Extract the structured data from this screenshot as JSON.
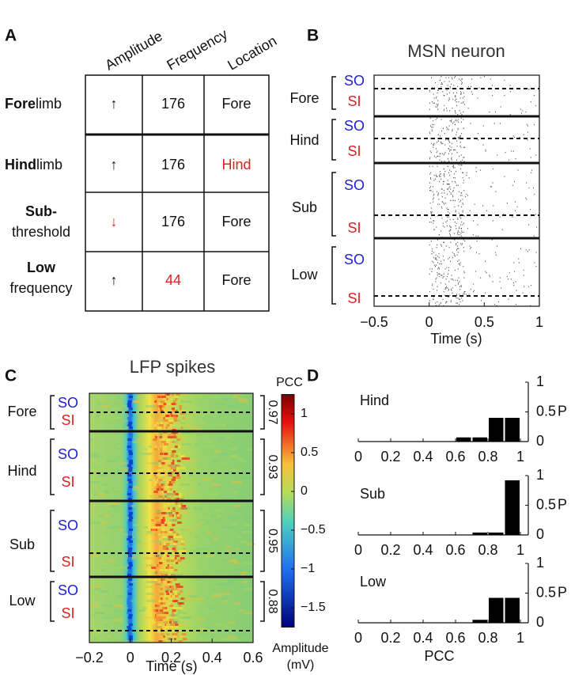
{
  "panels": {
    "a": {
      "label": "A",
      "columns": [
        "Amplitude",
        "Frequency",
        "Location"
      ],
      "rows": [
        {
          "label_bold": "Fore",
          "label_rest": "limb",
          "amplitude": "↑",
          "frequency": 176,
          "location": "Fore"
        },
        {
          "label_bold": "Hind",
          "label_rest": "limb",
          "amplitude": "↑",
          "frequency": 176,
          "location": "Hind"
        },
        {
          "label_bold": "Sub-",
          "label_rest": "threshold",
          "amplitude": "↓",
          "frequency": 176,
          "location": "Fore"
        },
        {
          "label_bold": "Low",
          "label_rest": "frequency",
          "amplitude": "↑",
          "frequency": 44,
          "location": "Fore"
        }
      ]
    },
    "b": {
      "label": "B",
      "title": "MSN neuron",
      "xlabel": "Time (s)",
      "xlim": [
        -0.5,
        1
      ],
      "xticks": [
        {
          "value": -0.5,
          "label": "−0.5"
        },
        0,
        0.5,
        1
      ],
      "groups": [
        {
          "name": "Fore",
          "top": "SO",
          "bottom": "SI"
        },
        {
          "name": "Hind",
          "top": "SO",
          "bottom": "SI"
        },
        {
          "name": "Sub",
          "top": "SO",
          "bottom": "SI"
        },
        {
          "name": "Low",
          "top": "SO",
          "bottom": "SI"
        }
      ]
    },
    "c": {
      "label": "C",
      "title": "LFP spikes",
      "xlabel": "Time (s)",
      "xlim": [
        -0.2,
        0.6
      ],
      "xticks": [
        {
          "value": -0.2,
          "label": "−0.2"
        },
        0,
        0.2,
        0.4,
        0.6
      ],
      "colorbar_title": "PCC",
      "colorbar_label_1": "Amplitude",
      "colorbar_label_2": "(mV)",
      "clim": [
        -1.75,
        1.25
      ],
      "cticks": [
        1,
        0.5,
        0,
        {
          "value": -0.5,
          "label": "−0.5"
        },
        {
          "value": -1,
          "label": "−1"
        },
        {
          "value": -1.5,
          "label": "−1.5"
        }
      ],
      "groups": [
        {
          "name": "Fore",
          "top": "SO",
          "bottom": "SI",
          "pcc": 0.97
        },
        {
          "name": "Hind",
          "top": "SO",
          "bottom": "SI",
          "pcc": 0.93
        },
        {
          "name": "Sub",
          "top": "SO",
          "bottom": "SI",
          "pcc": 0.95
        },
        {
          "name": "Low",
          "top": "SO",
          "bottom": "SI",
          "pcc": 0.88
        }
      ]
    },
    "d": {
      "label": "D"
    }
  },
  "chart_data": [
    {
      "type": "histogram",
      "title": "Hind",
      "color": "#000000",
      "bins": [
        0,
        0.1,
        0.2,
        0.3,
        0.4,
        0.5,
        0.6,
        0.7,
        0.8,
        0.9,
        1
      ],
      "counts": [
        0,
        0,
        0,
        0,
        0,
        0,
        0.07,
        0.07,
        0.4,
        0.4
      ],
      "xlim": [
        0,
        1
      ],
      "xticks": [
        0,
        0.2,
        0.4,
        0.6,
        0.8,
        1
      ],
      "ylim": [
        0,
        1
      ],
      "yticks": [
        0,
        0.5,
        1
      ],
      "ylabel": "P"
    },
    {
      "type": "histogram",
      "title": "Sub",
      "color": "#000000",
      "bins": [
        0,
        0.1,
        0.2,
        0.3,
        0.4,
        0.5,
        0.6,
        0.7,
        0.8,
        0.9,
        1
      ],
      "counts": [
        0,
        0,
        0,
        0,
        0,
        0,
        0,
        0.04,
        0.04,
        0.92
      ],
      "xlim": [
        0,
        1
      ],
      "xticks": [
        0,
        0.2,
        0.4,
        0.6,
        0.8,
        1
      ],
      "ylim": [
        0,
        1
      ],
      "yticks": [
        0,
        0.5,
        1
      ],
      "ylabel": "P"
    },
    {
      "type": "histogram",
      "title": "Low",
      "color": "#000000",
      "bins": [
        0,
        0.1,
        0.2,
        0.3,
        0.4,
        0.5,
        0.6,
        0.7,
        0.8,
        0.9,
        1
      ],
      "counts": [
        0,
        0,
        0,
        0,
        0,
        0,
        0,
        0.05,
        0.42,
        0.42
      ],
      "xlim": [
        0,
        1
      ],
      "xticks": [
        0,
        0.2,
        0.4,
        0.6,
        0.8,
        1
      ],
      "ylim": [
        0,
        1
      ],
      "yticks": [
        0,
        0.5,
        1
      ],
      "ylabel": "P",
      "xlabel": "PCC"
    }
  ]
}
